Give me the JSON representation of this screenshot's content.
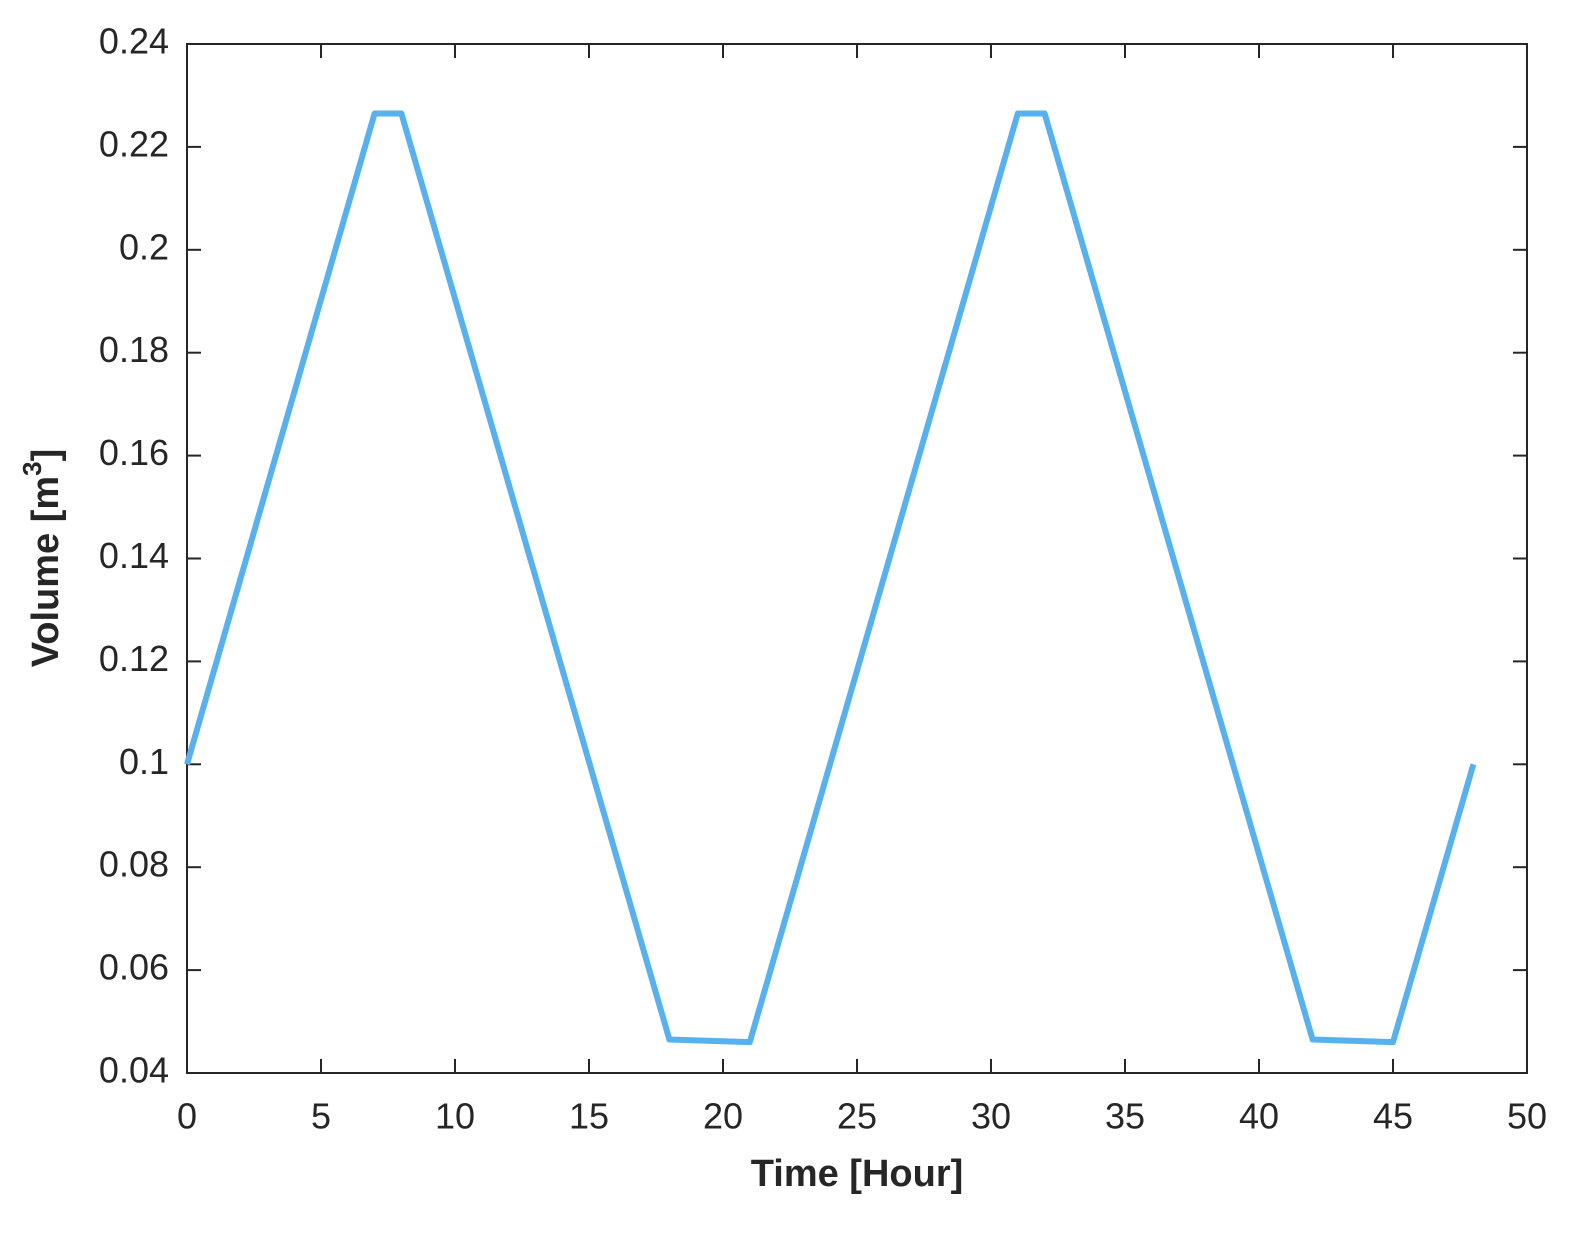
{
  "chart_data": {
    "type": "line",
    "xlabel": "Time [Hour]",
    "ylabel": [
      "Volume [m",
      "3",
      "]"
    ],
    "x": [
      0,
      7,
      8,
      18,
      21,
      31,
      32,
      42,
      45,
      48
    ],
    "series": [
      {
        "color": "#56b1ee",
        "values": [
          0.1,
          0.2265,
          0.2265,
          0.0465,
          0.046,
          0.2265,
          0.2265,
          0.0465,
          0.046,
          0.1
        ]
      }
    ],
    "xlim": [
      0,
      50
    ],
    "xticks": [
      0,
      5,
      10,
      15,
      20,
      25,
      30,
      35,
      40,
      45,
      50
    ],
    "ylim": [
      0.04,
      0.24
    ],
    "yticks": [
      0.04,
      0.06,
      0.08,
      0.1,
      0.12,
      0.14,
      0.16,
      0.18,
      0.2,
      0.22,
      0.24
    ],
    "grid": false
  }
}
